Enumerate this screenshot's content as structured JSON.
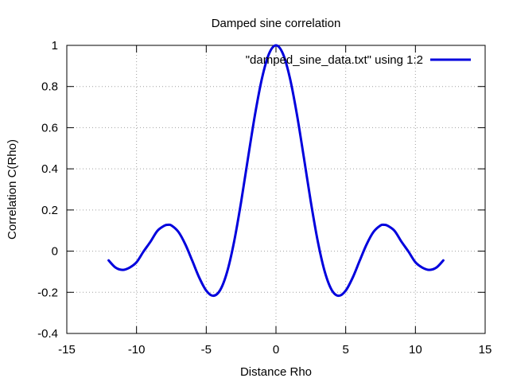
{
  "chart_data": {
    "type": "line",
    "title": "Damped sine correlation",
    "xlabel": "Distance Rho",
    "ylabel": "Correlation C(Rho)",
    "xlim": [
      -15,
      15
    ],
    "ylim": [
      -0.4,
      1
    ],
    "xticks": [
      -15,
      -10,
      -5,
      0,
      5,
      10,
      15
    ],
    "yticks": [
      -0.4,
      -0.2,
      0,
      0.2,
      0.4,
      0.6,
      0.8,
      1
    ],
    "xtick_labels": [
      "-15",
      "-10",
      "-5",
      "0",
      "5",
      "10",
      "15"
    ],
    "ytick_labels": [
      "-0.4",
      "-0.2",
      "0",
      "0.2",
      "0.4",
      "0.6",
      "0.8",
      "1"
    ],
    "grid": true,
    "legend_position": "top-right",
    "series": [
      {
        "name": "\"damped_sine_data.txt\" using 1:2",
        "color": "#0000dd",
        "x": [
          -12,
          -11.5,
          -11,
          -10.5,
          -10,
          -9.5,
          -9,
          -8.5,
          -8,
          -7.75,
          -7.5,
          -7,
          -6.5,
          -6,
          -5.5,
          -5,
          -4.5,
          -4,
          -3.5,
          -3,
          -2.5,
          -2,
          -1.5,
          -1,
          -0.5,
          0,
          0.5,
          1,
          1.5,
          2,
          2.5,
          3,
          3.5,
          4,
          4.5,
          5,
          5.5,
          6,
          6.5,
          7,
          7.5,
          7.75,
          8,
          8.5,
          9,
          9.5,
          10,
          10.5,
          11,
          11.5,
          12
        ],
        "y": [
          -0.045,
          -0.08,
          -0.091,
          -0.08,
          -0.054,
          -0.002,
          0.046,
          0.099,
          0.124,
          0.128,
          0.125,
          0.094,
          0.033,
          -0.047,
          -0.129,
          -0.192,
          -0.217,
          -0.189,
          -0.1,
          0.047,
          0.239,
          0.455,
          0.665,
          0.841,
          0.959,
          1.0,
          0.959,
          0.841,
          0.665,
          0.455,
          0.239,
          0.047,
          -0.1,
          -0.189,
          -0.217,
          -0.192,
          -0.129,
          -0.047,
          0.033,
          0.094,
          0.125,
          0.128,
          0.124,
          0.099,
          0.046,
          -0.002,
          -0.054,
          -0.08,
          -0.091,
          -0.08,
          -0.045
        ]
      }
    ]
  }
}
